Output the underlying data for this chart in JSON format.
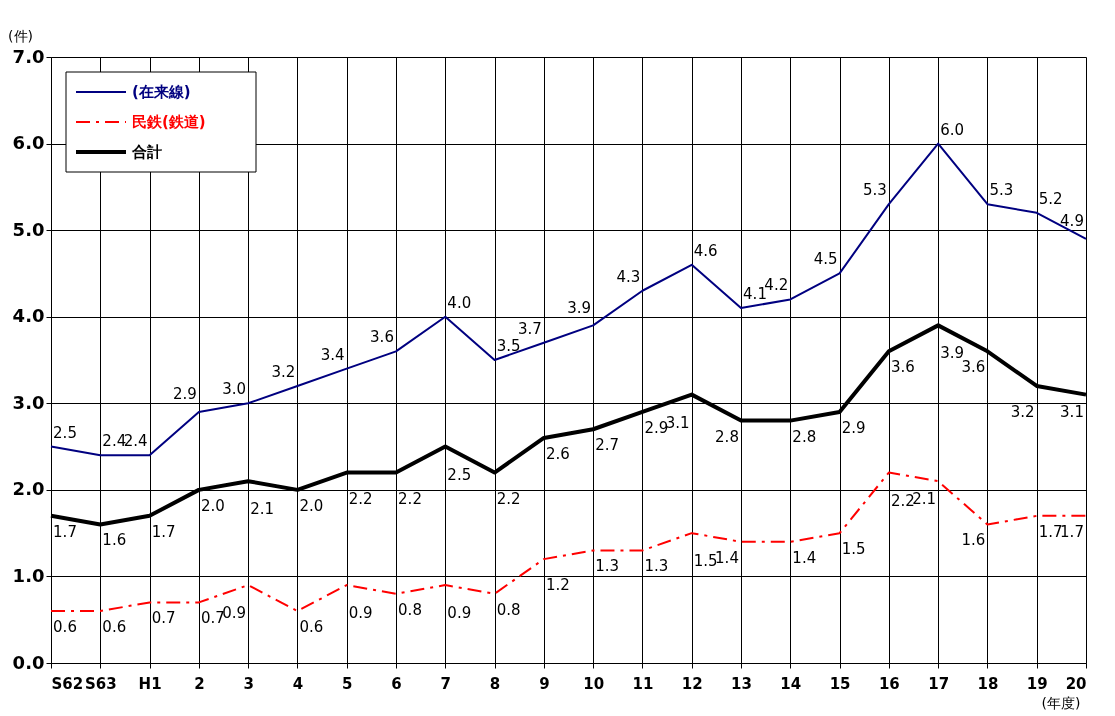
{
  "chart_data": {
    "type": "line",
    "categories": [
      "S62",
      "S63",
      "H1",
      "2",
      "3",
      "4",
      "5",
      "6",
      "7",
      "8",
      "9",
      "10",
      "11",
      "12",
      "13",
      "14",
      "15",
      "16",
      "17",
      "18",
      "19",
      "20"
    ],
    "ylabel": "(件)",
    "xlabel": "(年度)",
    "series": [
      {
        "name": "(在来線)",
        "color": "#000080",
        "line_style": "solid",
        "values": [
          2.5,
          2.4,
          2.4,
          2.9,
          3.0,
          3.2,
          3.4,
          3.6,
          4.0,
          3.5,
          3.7,
          3.9,
          4.3,
          4.6,
          4.1,
          4.2,
          4.5,
          5.3,
          6.0,
          5.3,
          5.2,
          4.9
        ],
        "value_labels": [
          "2.5",
          "2.4",
          "2.4",
          "2.9",
          "3.0",
          "3.2",
          "3.4",
          "3.6",
          "4.0",
          "3.5",
          "3.7",
          "3.9",
          "4.3",
          "4.6",
          "4.1",
          "4.2",
          "4.5",
          "5.3",
          "6.0",
          "5.3",
          "5.2",
          "4.9"
        ]
      },
      {
        "name": "民鉄(鉄道)",
        "color": "#ff0000",
        "line_style": "dashed",
        "values": [
          0.6,
          0.6,
          0.7,
          0.7,
          0.9,
          0.6,
          0.9,
          0.8,
          0.9,
          0.8,
          1.2,
          1.3,
          1.3,
          1.5,
          1.4,
          1.4,
          1.5,
          2.2,
          2.1,
          1.6,
          1.7,
          1.7
        ],
        "value_labels": [
          "0.6",
          "0.6",
          "0.7",
          "0.7",
          "0.9",
          "0.6",
          "0.9",
          "0.8",
          "0.9",
          "0.8",
          "1.2",
          "1.3",
          "1.3",
          "1.5",
          "1.4",
          "1.4",
          "1.5",
          "2.2",
          "2.1",
          "1.6",
          "1.7",
          "1.7"
        ]
      },
      {
        "name": "合計",
        "color": "#000000",
        "line_style": "solid",
        "values": [
          1.7,
          1.6,
          1.7,
          2.0,
          2.1,
          2.0,
          2.2,
          2.2,
          2.5,
          2.2,
          2.6,
          2.7,
          2.9,
          3.1,
          2.8,
          2.8,
          2.9,
          3.6,
          3.9,
          3.6,
          3.2,
          3.1
        ],
        "value_labels": [
          "1.7",
          "1.6",
          "1.7",
          "2.0",
          "2.1",
          "2.0",
          "2.2",
          "2.2",
          "2.5",
          "2.2",
          "2.6",
          "2.7",
          "2.9",
          "3.1",
          "2.8",
          "2.8",
          "2.9",
          "3.6",
          "3.9",
          "3.6",
          "3.2",
          "3.1"
        ]
      }
    ],
    "ylim": [
      0,
      7
    ],
    "yticks": [
      {
        "value": 0,
        "label": "0.0"
      },
      {
        "value": 1,
        "label": "1.0"
      },
      {
        "value": 2,
        "label": "2.0"
      },
      {
        "value": 3,
        "label": "3.0"
      },
      {
        "value": 4,
        "label": "4.0"
      },
      {
        "value": 5,
        "label": "5.0"
      },
      {
        "value": 6,
        "label": "6.0"
      },
      {
        "value": 7,
        "label": "7.0"
      }
    ],
    "grid": true,
    "legend": "top left",
    "marker": "none"
  }
}
